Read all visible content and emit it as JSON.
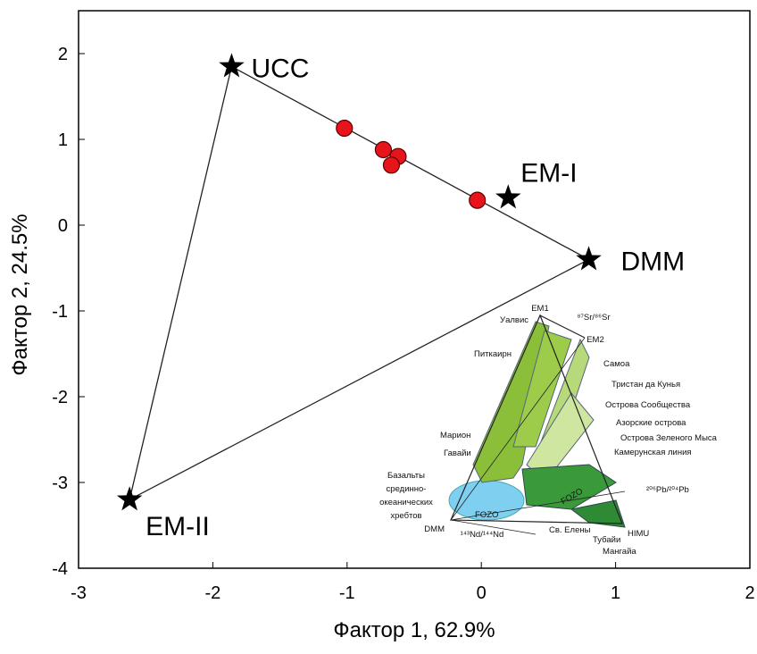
{
  "chart_data": {
    "type": "scatter",
    "xlabel": "Фактор 1, 62.9%",
    "ylabel": "Фактор 2, 24.5%",
    "xlim": [
      -3,
      2
    ],
    "ylim": [
      -4,
      2.5
    ],
    "xticks": [
      -3,
      -2,
      -1,
      0,
      1,
      2
    ],
    "yticks": [
      2,
      1,
      0,
      -1,
      -2,
      -3,
      -4
    ],
    "points": {
      "color": "#e8141b",
      "x": [
        -1.02,
        -0.73,
        -0.62,
        -0.67,
        -0.03
      ],
      "y": [
        1.13,
        0.88,
        0.8,
        0.7,
        0.29
      ]
    },
    "endmembers": {
      "color": "#000000",
      "labels": [
        "UCC",
        "EM-I",
        "DMM",
        "EM-II"
      ],
      "x": [
        -1.86,
        0.2,
        0.8,
        -2.62
      ],
      "y": [
        1.85,
        0.32,
        -0.4,
        -3.2
      ]
    }
  },
  "inset": {
    "labels": [
      "EM1",
      "⁸⁷Sr/⁸⁶Sr",
      "Уалвис",
      "EM2",
      "Питкаирн",
      "Самоа",
      "Тристан да Кунья",
      "Острова Сообщества",
      "Азорские острова",
      "Острова Зеленого Мыса",
      "Камерунская линия",
      "Марион",
      "Гавайи",
      "Базальты",
      "срединно-",
      "океанических",
      "хребтов",
      "²⁰⁶Pb/²⁰⁴Pb",
      "FOZO",
      "FOZO",
      "DMM",
      "¹⁴³Nd/¹⁴⁴Nd",
      "HIMU",
      "Св. Елены",
      "Тубайи",
      "Мангайа"
    ]
  }
}
